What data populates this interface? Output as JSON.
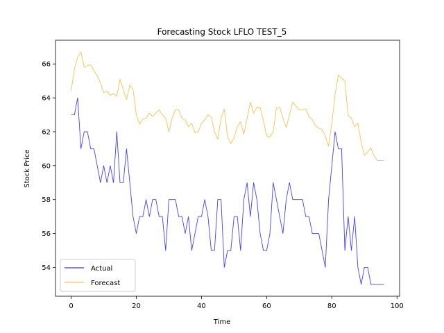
{
  "chart_data": {
    "type": "line",
    "title": "Forecasting Stock LFLO TEST_5",
    "xlabel": "Time",
    "ylabel": "Stock Price",
    "xlim": [
      -4.8,
      100.8
    ],
    "ylim": [
      52.3,
      67.4
    ],
    "xticks": [
      0,
      20,
      40,
      60,
      80,
      100
    ],
    "yticks": [
      54,
      56,
      58,
      60,
      62,
      64,
      66
    ],
    "grid": false,
    "legend_position": "lower-left",
    "series": [
      {
        "name": "Actual",
        "color": "#0000ff",
        "x": [
          0,
          1,
          2,
          3,
          4,
          5,
          6,
          7,
          8,
          9,
          10,
          11,
          12,
          13,
          14,
          15,
          16,
          17,
          18,
          19,
          20,
          21,
          22,
          23,
          24,
          25,
          26,
          27,
          28,
          29,
          30,
          31,
          32,
          33,
          34,
          35,
          36,
          37,
          38,
          39,
          40,
          41,
          42,
          43,
          44,
          45,
          46,
          47,
          48,
          49,
          50,
          51,
          52,
          53,
          54,
          55,
          56,
          57,
          58,
          59,
          60,
          61,
          62,
          63,
          64,
          65,
          66,
          67,
          68,
          69,
          70,
          71,
          72,
          73,
          74,
          75,
          76,
          77,
          78,
          79,
          80,
          81,
          82,
          83,
          84,
          85,
          86,
          87,
          88,
          89,
          90,
          91,
          92,
          93,
          94,
          95,
          96
        ],
        "values": [
          63,
          63,
          64,
          61,
          62,
          62,
          61,
          61,
          60,
          59,
          60,
          59,
          60,
          59,
          62,
          59,
          59,
          61,
          59,
          57,
          56,
          57,
          57,
          58,
          57,
          58,
          58,
          57,
          57,
          55,
          58,
          58,
          58,
          57,
          57,
          56,
          57,
          55,
          56,
          57,
          57,
          58,
          57,
          55,
          55,
          58,
          58,
          54,
          55,
          55,
          57,
          57,
          55,
          58,
          59,
          57,
          59,
          58,
          56,
          55,
          55,
          56,
          59,
          58,
          57,
          56,
          58,
          59,
          58,
          58,
          58,
          58,
          57,
          57,
          56,
          56,
          56,
          55,
          54,
          58,
          60,
          62,
          61,
          61,
          55,
          57,
          55,
          57,
          54,
          53,
          54,
          54,
          53,
          53,
          53,
          53,
          53
        ]
      },
      {
        "name": "Forecast",
        "color": "#f5b731",
        "x": [
          0,
          1,
          2,
          3,
          4,
          5,
          6,
          7,
          8,
          9,
          10,
          11,
          12,
          13,
          14,
          15,
          16,
          17,
          18,
          19,
          20,
          21,
          22,
          23,
          24,
          25,
          26,
          27,
          28,
          29,
          30,
          31,
          32,
          33,
          34,
          35,
          36,
          37,
          38,
          39,
          40,
          41,
          42,
          43,
          44,
          45,
          46,
          47,
          48,
          49,
          50,
          51,
          52,
          53,
          54,
          55,
          56,
          57,
          58,
          59,
          60,
          61,
          62,
          63,
          64,
          65,
          66,
          67,
          68,
          69,
          70,
          71,
          72,
          73,
          74,
          75,
          76,
          77,
          78,
          79,
          80,
          81,
          82,
          83,
          84,
          85,
          86,
          87,
          88,
          89,
          90,
          91,
          92,
          93,
          94,
          95,
          96
        ],
        "values": [
          64.4,
          65.7,
          66.4,
          66.7,
          65.8,
          65.9,
          65.95,
          65.6,
          65.3,
          64.9,
          64.3,
          64.4,
          64.15,
          64.25,
          64.1,
          65.1,
          64.5,
          63.9,
          64.75,
          64.5,
          63.0,
          62.45,
          62.75,
          62.8,
          63.1,
          62.9,
          63.1,
          63.3,
          63.0,
          62.8,
          62.0,
          62.8,
          63.3,
          63.3,
          62.8,
          62.7,
          62.3,
          62.5,
          61.95,
          62.0,
          62.5,
          62.7,
          63.0,
          62.85,
          62.0,
          61.55,
          62.8,
          63.35,
          61.7,
          61.3,
          61.65,
          62.3,
          62.6,
          61.85,
          62.8,
          63.75,
          63.1,
          63.45,
          63.45,
          62.65,
          61.75,
          61.7,
          62.0,
          63.4,
          63.45,
          62.8,
          62.25,
          63.0,
          63.75,
          63.5,
          63.3,
          63.3,
          63.35,
          62.9,
          62.7,
          62.35,
          62.2,
          62.15,
          61.75,
          61.15,
          62.5,
          64.2,
          65.35,
          65.15,
          65.0,
          62.95,
          62.8,
          62.3,
          62.5,
          61.4,
          60.6,
          60.8,
          61.05,
          60.55,
          60.3,
          60.3,
          60.3
        ]
      }
    ]
  }
}
